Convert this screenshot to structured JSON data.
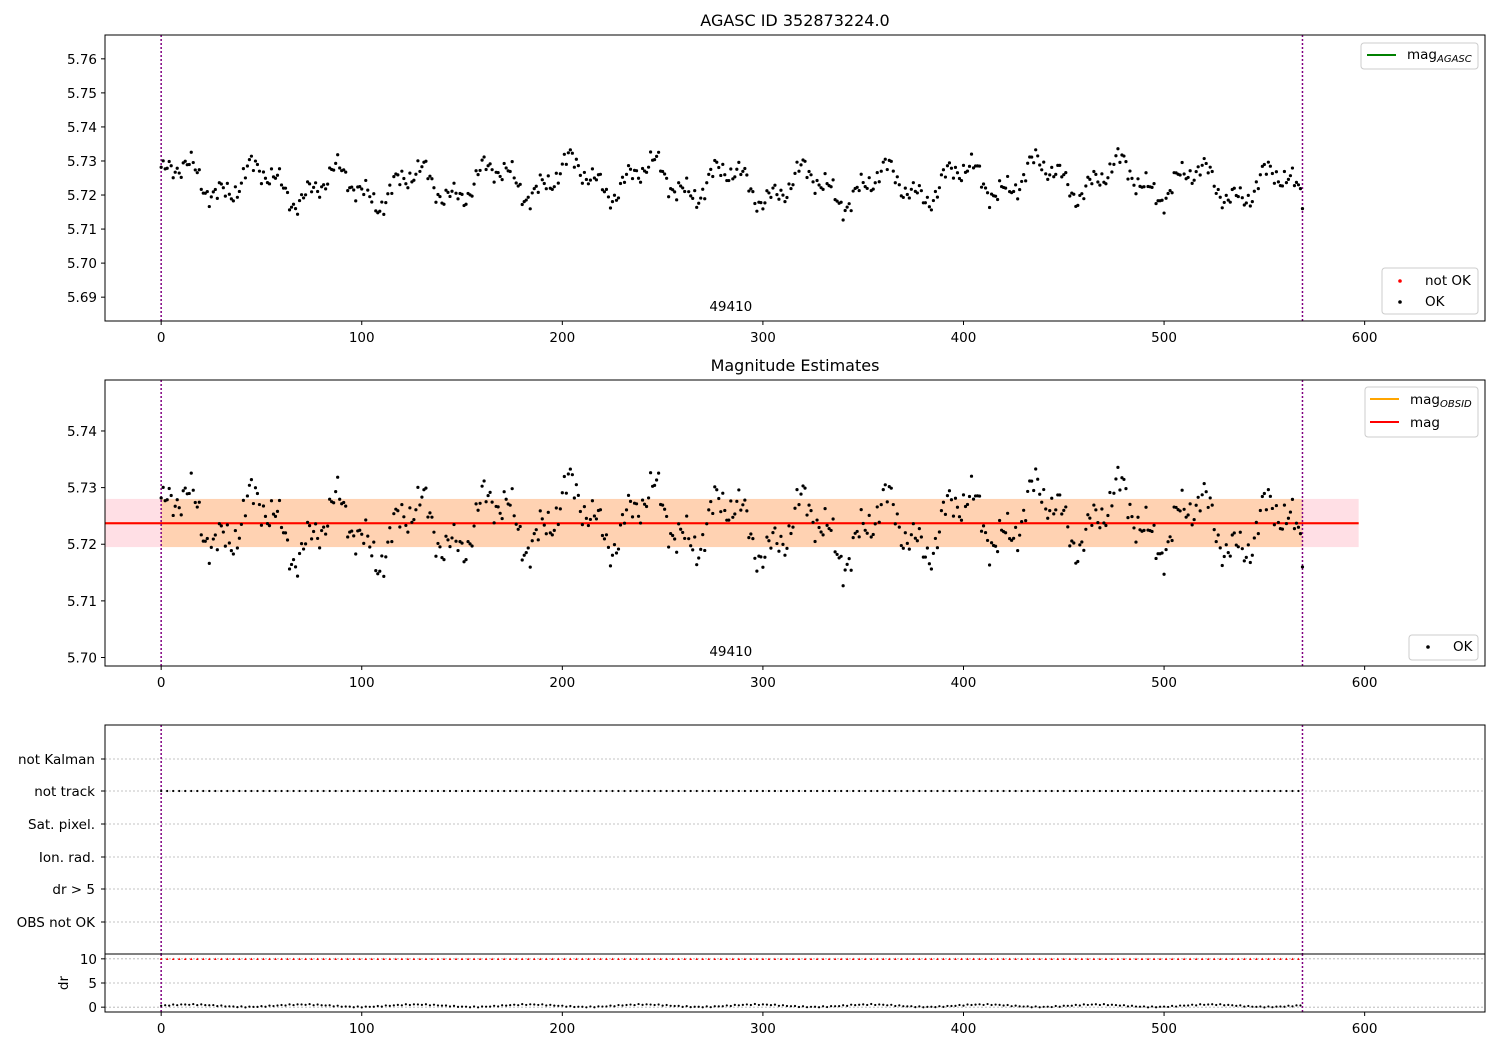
{
  "chart_data": [
    {
      "type": "scatter",
      "title": "AGASC ID 352873224.0",
      "xlim": [
        -28,
        660
      ],
      "ylim": [
        5.683,
        5.767
      ],
      "xticks": [
        0,
        100,
        200,
        300,
        400,
        500,
        600
      ],
      "yticks": [
        5.69,
        5.7,
        5.71,
        5.72,
        5.73,
        5.74,
        5.75,
        5.76
      ],
      "ytick_labels": [
        "5.69",
        "5.70",
        "5.71",
        "5.72",
        "5.73",
        "5.74",
        "5.75",
        "5.76"
      ],
      "vlines": [
        0,
        569
      ],
      "vline_color": "#800080",
      "obsid_label": {
        "text": "49410",
        "x": 284
      },
      "legend_lines": [
        {
          "label": "mag",
          "sub": "AGASC",
          "color": "#008000"
        }
      ],
      "legend_lines_location": "upper right",
      "legend_points": [
        {
          "label": "not OK",
          "color": "#ff0000"
        },
        {
          "label": "OK",
          "color": "#000000"
        }
      ],
      "legend_points_location": "lower right",
      "series": [
        {
          "name": "OK",
          "color": "#000000",
          "x_range": [
            0,
            569
          ],
          "n_points": 570
        }
      ]
    },
    {
      "type": "scatter",
      "title": "Magnitude Estimates",
      "xlim": [
        -28,
        660
      ],
      "ylim": [
        5.6985,
        5.749
      ],
      "xticks": [
        0,
        100,
        200,
        300,
        400,
        500,
        600
      ],
      "yticks": [
        5.7,
        5.71,
        5.72,
        5.73,
        5.74
      ],
      "ytick_labels": [
        "5.70",
        "5.71",
        "5.72",
        "5.73",
        "5.74"
      ],
      "vlines": [
        0,
        569
      ],
      "vline_color": "#800080",
      "obsid_label": {
        "text": "49410",
        "x": 284
      },
      "mag_mean": 5.7237,
      "mag_band": [
        5.7195,
        5.728
      ],
      "band_x_range": [
        -28,
        597
      ],
      "legend_lines": [
        {
          "label": "mag",
          "sub": "OBSID",
          "color": "#ffa500"
        },
        {
          "label": "mag",
          "sub": "",
          "color": "#ff0000"
        }
      ],
      "legend_lines_location": "upper right",
      "legend_points": [
        {
          "label": "OK",
          "color": "#000000"
        }
      ],
      "legend_points_location": "lower right",
      "series": [
        {
          "name": "OK",
          "color": "#000000",
          "x_range": [
            0,
            569
          ],
          "n_points": 570
        }
      ]
    },
    {
      "type": "scatter",
      "title": "",
      "xlim": [
        -28,
        660
      ],
      "categories": [
        "not Kalman",
        "not track",
        "Sat. pixel.",
        "Ion. rad.",
        "dr > 5",
        "OBS not OK"
      ],
      "flags_set": [
        "not track"
      ],
      "vlines": [
        0,
        569
      ],
      "vline_color": "#800080"
    },
    {
      "type": "scatter",
      "title": "",
      "xlim": [
        -28,
        660
      ],
      "ylim": [
        -1,
        11
      ],
      "xticks": [
        0,
        100,
        200,
        300,
        400,
        500,
        600
      ],
      "yticks": [
        0,
        5,
        10
      ],
      "ytick_labels": [
        "0",
        "5",
        "10"
      ],
      "ylabel": "dr",
      "vlines": [
        0,
        569
      ],
      "vline_color": "#800080",
      "threshold_series": {
        "value": 10,
        "color": "#ff0000"
      },
      "series": [
        {
          "name": "dr",
          "color": "#000000",
          "x_range": [
            0,
            569
          ],
          "approx_level": 0.3
        }
      ]
    }
  ]
}
